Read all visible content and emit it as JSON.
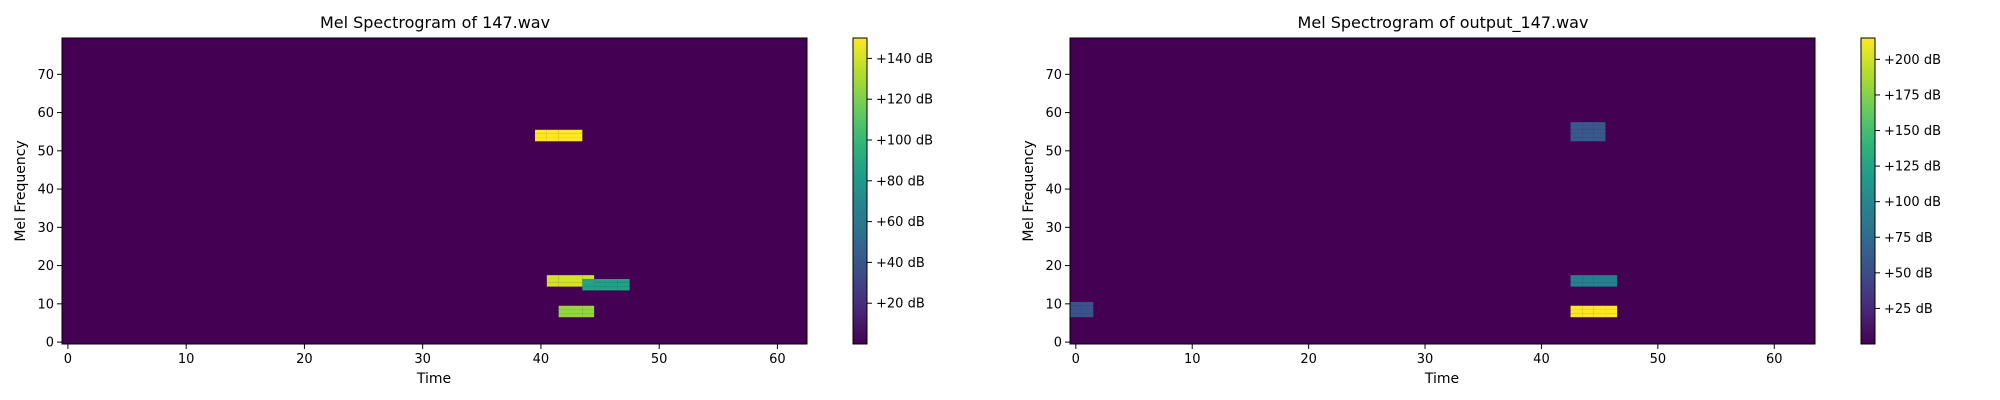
{
  "chart_data": [
    {
      "type": "heatmap",
      "title": "Mel Spectrogram of 147.wav",
      "xlabel": "Time",
      "ylabel": "Mel Frequency",
      "xlim": [
        -0.5,
        62.5
      ],
      "ylim": [
        -0.5,
        79.5
      ],
      "x_ticks": [
        "0",
        "10",
        "20",
        "30",
        "40",
        "50",
        "60"
      ],
      "y_ticks": [
        "0",
        "10",
        "20",
        "30",
        "40",
        "50",
        "60",
        "70"
      ],
      "colormap": "viridis",
      "colorbar": {
        "range_db": [
          0,
          150
        ],
        "ticks": [
          "+20 dB",
          "+40 dB",
          "+60 dB",
          "+80 dB",
          "+100 dB",
          "+120 dB",
          "+140 dB"
        ]
      },
      "n_time": 63,
      "n_mel": 80,
      "hotspots": [
        {
          "time": [
            40,
            43
          ],
          "mel": [
            53,
            55
          ],
          "db": 150
        },
        {
          "time": [
            41,
            44
          ],
          "mel": [
            15,
            17
          ],
          "db": 140
        },
        {
          "time": [
            42,
            44
          ],
          "mel": [
            7,
            9
          ],
          "db": 125
        },
        {
          "time": [
            44,
            47
          ],
          "mel": [
            14,
            16
          ],
          "db": 85
        }
      ]
    },
    {
      "type": "heatmap",
      "title": "Mel Spectrogram of output_147.wav",
      "xlabel": "Time",
      "ylabel": "Mel Frequency",
      "xlim": [
        -0.5,
        63.5
      ],
      "ylim": [
        -0.5,
        79.5
      ],
      "x_ticks": [
        "0",
        "10",
        "20",
        "30",
        "40",
        "50",
        "60"
      ],
      "y_ticks": [
        "0",
        "10",
        "20",
        "30",
        "40",
        "50",
        "60",
        "70"
      ],
      "colormap": "viridis",
      "colorbar": {
        "range_db": [
          0,
          215
        ],
        "ticks": [
          "+25 dB",
          "+50 dB",
          "+75 dB",
          "+100 dB",
          "+125 dB",
          "+150 dB",
          "+175 dB",
          "+200 dB"
        ]
      },
      "n_time": 64,
      "n_mel": 80,
      "hotspots": [
        {
          "time": [
            43,
            46
          ],
          "mel": [
            7,
            9
          ],
          "db": 215
        },
        {
          "time": [
            43,
            46
          ],
          "mel": [
            15,
            17
          ],
          "db": 95
        },
        {
          "time": [
            43,
            45
          ],
          "mel": [
            53,
            57
          ],
          "db": 60
        },
        {
          "time": [
            0,
            1
          ],
          "mel": [
            7,
            10
          ],
          "db": 55
        }
      ]
    }
  ]
}
